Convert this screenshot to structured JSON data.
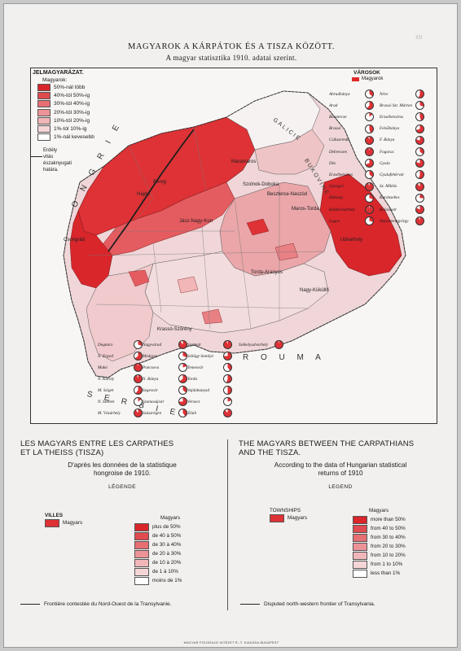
{
  "page_mark": "XII",
  "titles": {
    "hu_main": "MAGYAROK A KÁRPÁTOK ÉS A TISZA KÖZÖTT.",
    "hu_sub": "A magyar statisztika 1910. adatai szerint."
  },
  "map_legend": {
    "heading": "JELMAGYARÁZAT.",
    "subheading": "Magyarok:",
    "rows": [
      "50%-nál több",
      "40%-tól 50%-ig",
      "30%-tól 40%-ig",
      "20%-tól 30%-ig",
      "10%-tól 20%-ig",
      "1%-tól 10%-ig",
      "1%-nál kevesebb"
    ],
    "frontier": [
      "Erdély",
      "vitás északnyugati",
      "határa."
    ]
  },
  "map_labels": {
    "hongrie": "O N G R I E",
    "galicie": "GALICIE",
    "bukovine": "BUKOVINE",
    "roumanie": "R O U M A",
    "serbie": "S E R B I E",
    "places": [
      "Maramaros",
      "Bereg",
      "Hajdu",
      "Jász-Nagy-Kun",
      "Szolnok-Doboka",
      "Beszterce-Naszód",
      "Maros-Torda",
      "Csongrád",
      "Torda-Aranyos",
      "Udvarhely",
      "Krassó-Szörény",
      "Nagy-Küküllő"
    ]
  },
  "cities": {
    "heading": "VÁROSOK",
    "subheading": "Magyarok",
    "list": [
      {
        "name": "Abrudbánya",
        "share": 0.35
      },
      {
        "name": "Néve",
        "share": 0.55
      },
      {
        "name": "Arad",
        "share": 0.62
      },
      {
        "name": "Brassó Szt. Márton",
        "share": 0.3
      },
      {
        "name": "Besztercze",
        "share": 0.15
      },
      {
        "name": "Erzsébetváros",
        "share": 0.45
      },
      {
        "name": "Brassó",
        "share": 0.45
      },
      {
        "name": "Felsőbánya",
        "share": 0.7
      },
      {
        "name": "Csíkszereda",
        "share": 0.95
      },
      {
        "name": "F. Bánya",
        "share": 0.8
      },
      {
        "name": "Debreczen",
        "share": 0.98
      },
      {
        "name": "Fogaras",
        "share": 0.35
      },
      {
        "name": "Dés",
        "share": 0.7
      },
      {
        "name": "Gyula",
        "share": 0.8
      },
      {
        "name": "Erzsébetváros",
        "share": 0.35
      },
      {
        "name": "Gyulafehérvár",
        "share": 0.55
      },
      {
        "name": "Gyergyó",
        "share": 0.95
      },
      {
        "name": "Sz. Miklós",
        "share": 0.9
      },
      {
        "name": "Hátszeg",
        "share": 0.3
      },
      {
        "name": "Karánsebes",
        "share": 0.25
      },
      {
        "name": "Kézdivásárhely",
        "share": 0.98
      },
      {
        "name": "Kolozsvár",
        "share": 0.82
      },
      {
        "name": "Lugos",
        "share": 0.3
      },
      {
        "name": "Sepsiszentgyörgy",
        "share": 0.95
      },
      {
        "name": "Dognács",
        "share": 0.3
      },
      {
        "name": "N. Enyed",
        "share": 0.65
      },
      {
        "name": "Makó",
        "share": 0.98
      },
      {
        "name": "N. Károly",
        "share": 0.95
      },
      {
        "name": "M. Sziget",
        "share": 0.6
      },
      {
        "name": "N. Szeben",
        "share": 0.15
      },
      {
        "name": "M. Vásárhely",
        "share": 0.9
      },
      {
        "name": "Nagyvárad",
        "share": 0.9
      },
      {
        "name": "Medgyes",
        "share": 0.3
      },
      {
        "name": "Pancsova",
        "share": 0.2
      },
      {
        "name": "N. Bánya",
        "share": 0.65
      },
      {
        "name": "Segesvár",
        "share": 0.35
      },
      {
        "name": "Szamosújvár",
        "share": 0.75
      },
      {
        "name": "Szászrégen",
        "share": 0.4
      },
      {
        "name": "Szatmár",
        "share": 0.95
      },
      {
        "name": "Szilágy-Somlyó",
        "share": 0.75
      },
      {
        "name": "Temesvár",
        "share": 0.4
      },
      {
        "name": "Torda",
        "share": 0.55
      },
      {
        "name": "Vajdahunyad",
        "share": 0.5
      },
      {
        "name": "Versecz",
        "share": 0.2
      },
      {
        "name": "Zilah",
        "share": 0.88
      },
      {
        "name": "Székelyudvarhely",
        "share": 0.98
      }
    ]
  },
  "french": {
    "title_1": "LES MAGYARS ENTRE LES CARPATHES",
    "title_2": "ET LA THEISS (TISZA)",
    "source_1": "D'après les données de la statistique",
    "source_2": "hongroise de 1910.",
    "legend_title": "LÉGENDE",
    "towns_label": "VILLES",
    "towns_sub": "Magyars",
    "scale_title": "Magyars",
    "scale": [
      "plus de 50%",
      "de 40 à 50%",
      "de 30 à 40%",
      "de 20 à 30%",
      "de 10 à 20%",
      "de 1 à 10%",
      "moins de 1%"
    ],
    "frontier": "Frontière contestée du Nord-Ouest de la Transylvanie."
  },
  "english": {
    "title_1": "THE MAGYARS BETWEEN THE CARPATHIANS",
    "title_2": "AND THE TISZA.",
    "source_1": "According to the data of Hungarian statistical",
    "source_2": "returns of 1910",
    "legend_title": "LEGEND",
    "towns_label": "TOWNSHIPS",
    "towns_sub": "Magyars",
    "scale_title": "Magyars",
    "scale": [
      "more than 50%",
      "from 40 to 50%",
      "from 30 to 40%",
      "from 20 to 30%",
      "from 10 to 20%",
      "from 1 to 10%",
      "less than 1%"
    ],
    "frontier": "Disputed north-western frontier of Transylvania."
  },
  "scale_colors": [
    "#d8262b",
    "#e04b4f",
    "#e66f73",
    "#ec9397",
    "#f1b6b8",
    "#f5d6d7",
    "#ffffff"
  ],
  "imprint": "MAGYAR FÖLDRAJZI INTÉZET R.-T. KIADÁSA BUDAPEST"
}
